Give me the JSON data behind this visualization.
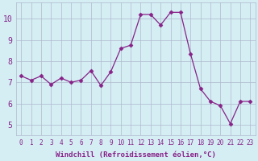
{
  "x": [
    0,
    1,
    2,
    3,
    4,
    5,
    6,
    7,
    8,
    9,
    10,
    11,
    12,
    13,
    14,
    15,
    16,
    17,
    18,
    19,
    20,
    21,
    22,
    23
  ],
  "y": [
    7.3,
    7.1,
    7.3,
    6.9,
    7.2,
    7.0,
    7.1,
    7.55,
    6.85,
    7.5,
    8.6,
    8.75,
    10.2,
    10.2,
    9.7,
    10.3,
    10.3,
    8.35,
    6.7,
    6.1,
    5.9,
    5.05,
    6.1,
    6.1
  ],
  "line_color": "#882288",
  "marker": "D",
  "marker_size": 2.5,
  "bg_color": "#d4eef4",
  "grid_color": "#b0b8cc",
  "xlabel": "Windchill (Refroidissement éolien,°C)",
  "ylabel": "",
  "xlim": [
    -0.5,
    23.5
  ],
  "ylim": [
    4.5,
    10.75
  ],
  "xticks": [
    0,
    1,
    2,
    3,
    4,
    5,
    6,
    7,
    8,
    9,
    10,
    11,
    12,
    13,
    14,
    15,
    16,
    17,
    18,
    19,
    20,
    21,
    22,
    23
  ],
  "yticks": [
    5,
    6,
    7,
    8,
    9,
    10
  ],
  "xlabel_color": "#882288",
  "tick_color": "#882288",
  "label_fontsize": 6.5,
  "tick_fontsize_x": 5.5,
  "tick_fontsize_y": 7.0
}
